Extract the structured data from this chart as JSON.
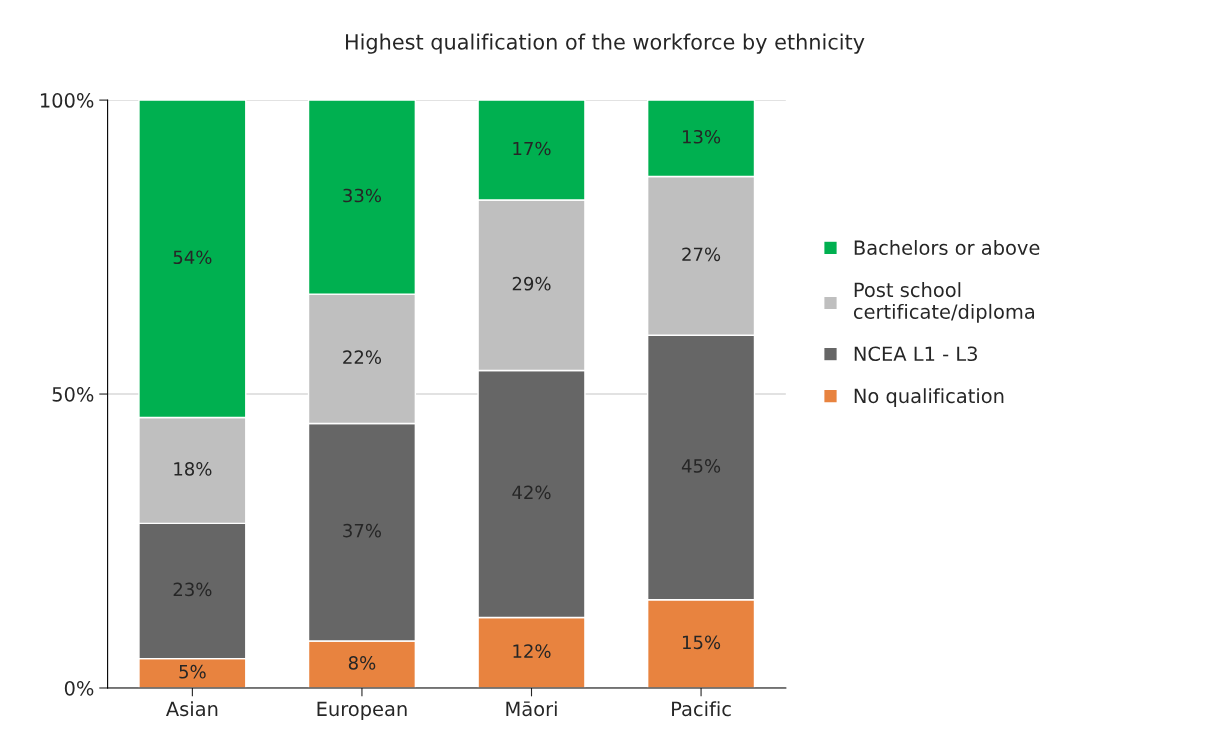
{
  "chart_data": {
    "type": "bar",
    "title": "Highest qualification of the workforce by ethnicity",
    "categories": [
      "Asian",
      "European",
      "Māori",
      "Pacific"
    ],
    "stacked": true,
    "series": [
      {
        "name": "No qualification",
        "color": "#e8833f",
        "values": [
          5,
          8,
          12,
          15
        ],
        "value_labels": [
          "5%",
          "8%",
          "12%",
          "15%"
        ]
      },
      {
        "name": "NCEA L1 - L3",
        "color": "#666666",
        "values": [
          23,
          37,
          42,
          45
        ],
        "value_labels": [
          "23%",
          "37%",
          "42%",
          "45%"
        ]
      },
      {
        "name": "Post school\ncertificate/diploma",
        "color": "#bfbfbf",
        "values": [
          18,
          22,
          29,
          27
        ],
        "value_labels": [
          "18%",
          "22%",
          "29%",
          "27%"
        ]
      },
      {
        "name": "Bachelors or above",
        "color": "#00b050",
        "values": [
          54,
          33,
          17,
          13
        ],
        "value_labels": [
          "54%",
          "33%",
          "17%",
          "13%"
        ]
      }
    ],
    "ylim": [
      0,
      100
    ],
    "yticks": [
      {
        "value": 0,
        "label": "0%"
      },
      {
        "value": 50,
        "label": "50%"
      },
      {
        "value": 100,
        "label": "100%"
      }
    ],
    "grid": "y",
    "legend": "right"
  }
}
